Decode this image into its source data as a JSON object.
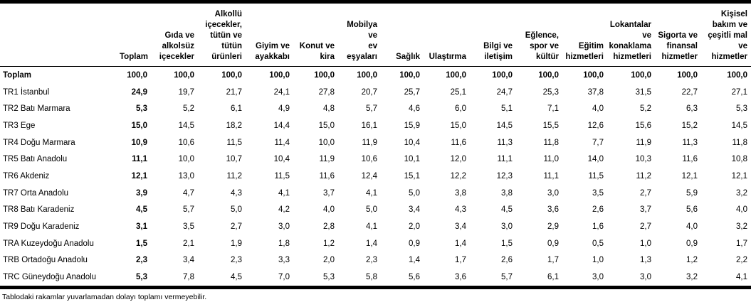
{
  "colors": {
    "background": "#ffffff",
    "text": "#000000",
    "rule": "#000000"
  },
  "table": {
    "columns": [
      "Toplam",
      "Gıda ve\nalkolsüz\niçecekler",
      "Alkollü\niçecekler,\ntütün ve\ntütün\nürünleri",
      "Giyim ve\nayakkabı",
      "Konut ve\nkira",
      "Mobilya ve\nev\neşyaları",
      "Sağlık",
      "Ulaştırma",
      "Bilgi ve\niletişim",
      "Eğlence,\nspor ve\nkültür",
      "Eğitim\nhizmetleri",
      "Lokantalar\nve\nkonaklama\nhizmetleri",
      "Sigorta ve\nfinansal\nhizmetler",
      "Kişisel\nbakım ve\nçeşitli mal\nve\nhizmetler"
    ],
    "rows": [
      {
        "label": "Toplam",
        "bold": true,
        "values": [
          "100,0",
          "100,0",
          "100,0",
          "100,0",
          "100,0",
          "100,0",
          "100,0",
          "100,0",
          "100,0",
          "100,0",
          "100,0",
          "100,0",
          "100,0",
          "100,0"
        ]
      },
      {
        "label": "TR1 İstanbul",
        "bold": false,
        "values": [
          "24,9",
          "19,7",
          "21,7",
          "24,1",
          "27,8",
          "20,7",
          "25,7",
          "25,1",
          "24,7",
          "25,3",
          "37,8",
          "31,5",
          "22,7",
          "27,1"
        ]
      },
      {
        "label": "TR2 Batı Marmara",
        "bold": false,
        "values": [
          "5,3",
          "5,2",
          "6,1",
          "4,9",
          "4,8",
          "5,7",
          "4,6",
          "6,0",
          "5,1",
          "7,1",
          "4,0",
          "5,2",
          "6,3",
          "5,3"
        ]
      },
      {
        "label": "TR3 Ege",
        "bold": false,
        "values": [
          "15,0",
          "14,5",
          "18,2",
          "14,4",
          "15,0",
          "16,1",
          "15,9",
          "15,0",
          "14,5",
          "15,5",
          "12,6",
          "15,6",
          "15,2",
          "14,5"
        ]
      },
      {
        "label": "TR4 Doğu Marmara",
        "bold": false,
        "values": [
          "10,9",
          "10,6",
          "11,5",
          "11,4",
          "10,0",
          "11,9",
          "10,4",
          "11,6",
          "11,3",
          "11,8",
          "7,7",
          "11,9",
          "11,3",
          "11,8"
        ]
      },
      {
        "label": "TR5 Batı Anadolu",
        "bold": false,
        "values": [
          "11,1",
          "10,0",
          "10,7",
          "10,4",
          "11,9",
          "10,6",
          "10,1",
          "12,0",
          "11,1",
          "11,0",
          "14,0",
          "10,3",
          "11,6",
          "10,8"
        ]
      },
      {
        "label": "TR6 Akdeniz",
        "bold": false,
        "values": [
          "12,1",
          "13,0",
          "11,2",
          "11,5",
          "11,6",
          "12,4",
          "15,1",
          "12,2",
          "12,3",
          "11,1",
          "11,5",
          "11,2",
          "12,1",
          "12,1"
        ]
      },
      {
        "label": "TR7 Orta Anadolu",
        "bold": false,
        "values": [
          "3,9",
          "4,7",
          "4,3",
          "4,1",
          "3,7",
          "4,1",
          "5,0",
          "3,8",
          "3,8",
          "3,0",
          "3,5",
          "2,7",
          "5,9",
          "3,2"
        ]
      },
      {
        "label": "TR8 Batı Karadeniz",
        "bold": false,
        "values": [
          "4,5",
          "5,7",
          "5,0",
          "4,2",
          "4,0",
          "5,0",
          "3,4",
          "4,3",
          "4,5",
          "3,6",
          "2,6",
          "3,7",
          "5,6",
          "4,0"
        ]
      },
      {
        "label": "TR9 Doğu Karadeniz",
        "bold": false,
        "values": [
          "3,1",
          "3,5",
          "2,7",
          "3,0",
          "2,8",
          "4,1",
          "2,0",
          "3,4",
          "3,0",
          "2,9",
          "1,6",
          "2,7",
          "4,0",
          "3,2"
        ]
      },
      {
        "label": "TRA Kuzeydoğu Anadolu",
        "bold": false,
        "values": [
          "1,5",
          "2,1",
          "1,9",
          "1,8",
          "1,2",
          "1,4",
          "0,9",
          "1,4",
          "1,5",
          "0,9",
          "0,5",
          "1,0",
          "0,9",
          "1,7"
        ]
      },
      {
        "label": "TRB Ortadoğu Anadolu",
        "bold": false,
        "values": [
          "2,3",
          "3,4",
          "2,3",
          "3,3",
          "2,0",
          "2,3",
          "1,4",
          "1,7",
          "2,6",
          "1,7",
          "1,0",
          "1,3",
          "1,2",
          "2,2"
        ]
      },
      {
        "label": "TRC Güneydoğu Anadolu",
        "bold": false,
        "values": [
          "5,3",
          "7,8",
          "4,5",
          "7,0",
          "5,3",
          "5,8",
          "5,6",
          "3,6",
          "5,7",
          "6,1",
          "3,0",
          "3,0",
          "3,2",
          "4,1"
        ]
      }
    ],
    "footnote": "Tablodaki rakamlar yuvarlamadan dolayı toplamı vermeyebilir."
  }
}
